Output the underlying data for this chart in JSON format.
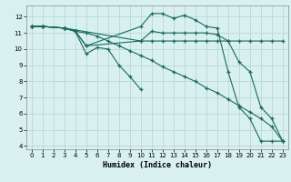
{
  "xlabel": "Humidex (Indice chaleur)",
  "bg_color": "#d8f0f0",
  "grid_color": "#b8d8d8",
  "line_color": "#1a6b5a",
  "xlim": [
    -0.5,
    23.5
  ],
  "ylim": [
    3.8,
    12.7
  ],
  "yticks": [
    4,
    5,
    6,
    7,
    8,
    9,
    10,
    11,
    12
  ],
  "xticks": [
    0,
    1,
    2,
    3,
    4,
    5,
    6,
    7,
    8,
    9,
    10,
    11,
    12,
    13,
    14,
    15,
    16,
    17,
    18,
    19,
    20,
    21,
    22,
    23
  ],
  "lines": [
    {
      "x": [
        0,
        1,
        3,
        4,
        5,
        10,
        11,
        12,
        13,
        14,
        15,
        16,
        17,
        18,
        19,
        20,
        21,
        22,
        23
      ],
      "y": [
        11.4,
        11.4,
        11.3,
        11.1,
        10.2,
        11.4,
        12.2,
        12.2,
        11.9,
        12.1,
        11.8,
        11.4,
        11.3,
        8.6,
        6.4,
        5.7,
        4.3,
        4.3,
        4.3
      ]
    },
    {
      "x": [
        0,
        1,
        3,
        4,
        5,
        10,
        11,
        12,
        13,
        14,
        15,
        16,
        17,
        18,
        19,
        20,
        21,
        22,
        23
      ],
      "y": [
        11.4,
        11.4,
        11.3,
        11.1,
        10.2,
        10.5,
        11.1,
        11.0,
        11.0,
        11.0,
        11.0,
        11.0,
        10.9,
        10.5,
        9.2,
        8.6,
        6.4,
        5.7,
        4.3
      ]
    },
    {
      "x": [
        0,
        1,
        3,
        10,
        11,
        12,
        13,
        14,
        15,
        16,
        17,
        18,
        19,
        20,
        21,
        22,
        23
      ],
      "y": [
        11.4,
        11.4,
        11.3,
        10.5,
        10.5,
        10.5,
        10.5,
        10.5,
        10.5,
        10.5,
        10.5,
        10.5,
        10.5,
        10.5,
        10.5,
        10.5,
        10.5
      ]
    },
    {
      "x": [
        0,
        1,
        3,
        4,
        5,
        6,
        7,
        8,
        9,
        10
      ],
      "y": [
        11.4,
        11.4,
        11.3,
        11.1,
        9.7,
        10.1,
        10.0,
        9.0,
        8.3,
        7.5
      ]
    },
    {
      "x": [
        0,
        1,
        3,
        4,
        5,
        6,
        7,
        8,
        9,
        10,
        11,
        12,
        13,
        14,
        15,
        16,
        17,
        18,
        19,
        20,
        21,
        22,
        23
      ],
      "y": [
        11.4,
        11.4,
        11.3,
        11.1,
        11.0,
        10.8,
        10.5,
        10.2,
        9.9,
        9.6,
        9.3,
        8.9,
        8.6,
        8.3,
        8.0,
        7.6,
        7.3,
        6.9,
        6.5,
        6.1,
        5.7,
        5.2,
        4.3
      ]
    }
  ]
}
